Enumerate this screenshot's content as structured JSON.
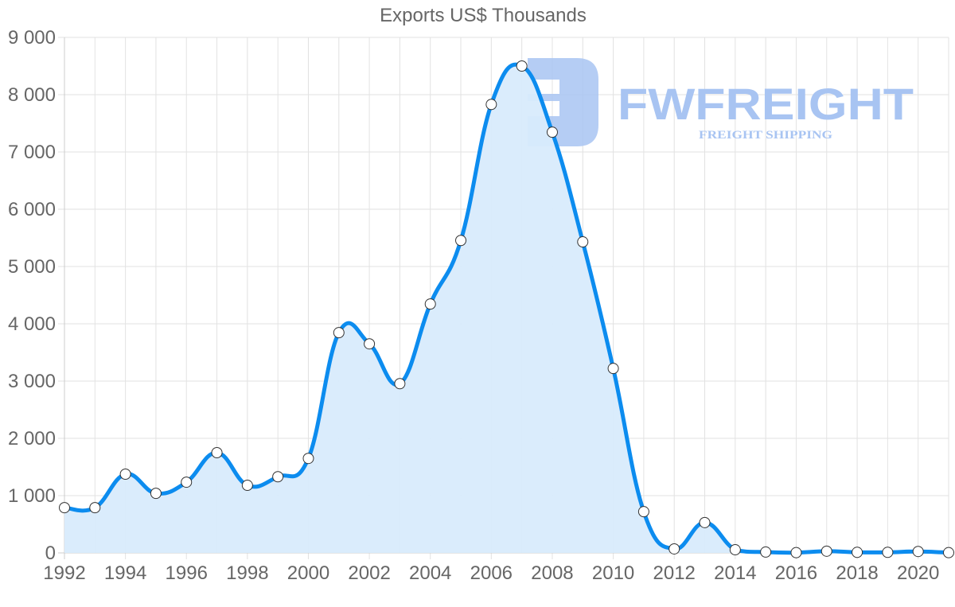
{
  "chart_data": {
    "type": "line",
    "title": "Exports US$ Thousands",
    "xlabel": "",
    "ylabel": "",
    "x": [
      1992,
      1993,
      1994,
      1995,
      1996,
      1997,
      1998,
      1999,
      2000,
      2001,
      2002,
      2003,
      2004,
      2005,
      2006,
      2007,
      2008,
      2009,
      2010,
      2011,
      2012,
      2013,
      2014,
      2015,
      2016,
      2017,
      2018,
      2019,
      2020,
      2021
    ],
    "series": [
      {
        "name": "Exports US$ Thousands",
        "values": [
          790,
          790,
          1375,
          1040,
          1235,
          1750,
          1180,
          1330,
          1650,
          3845,
          3650,
          2955,
          4345,
          5455,
          7830,
          8500,
          7345,
          5430,
          3220,
          720,
          70,
          530,
          55,
          15,
          5,
          30,
          10,
          10,
          25,
          5
        ]
      }
    ],
    "ylim": [
      0,
      9000
    ],
    "xlim": [
      1992,
      2021
    ],
    "y_ticks": [
      "0",
      "1 000",
      "2 000",
      "3 000",
      "4 000",
      "5 000",
      "6 000",
      "7 000",
      "8 000",
      "9 000"
    ],
    "x_ticks": [
      "1992",
      "1994",
      "1996",
      "1998",
      "2000",
      "2002",
      "2004",
      "2006",
      "2008",
      "2010",
      "2012",
      "2014",
      "2016",
      "2018",
      "2020"
    ],
    "grid": true,
    "fill": true,
    "legend": "none",
    "colors": {
      "line": "#0c8cef",
      "fill": "#d8ebfc",
      "point_fill": "#ffffff",
      "point_stroke": "#333333",
      "grid": "#e2e2e2",
      "text": "#666666"
    }
  },
  "watermark": {
    "brand": "FWFREIGHT",
    "tagline": "FREIGHT SHIPPING",
    "color": "#a8c4f2"
  }
}
